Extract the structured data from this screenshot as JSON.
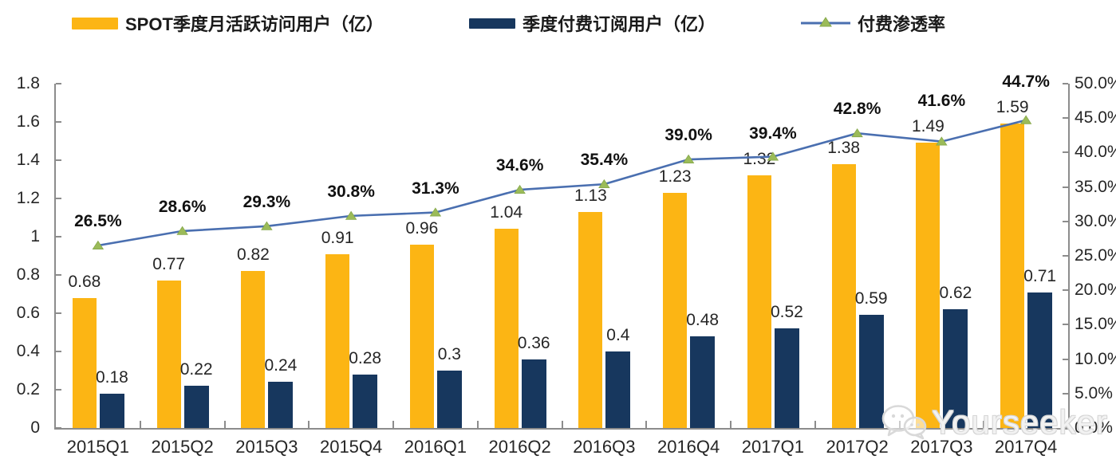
{
  "legend": [
    {
      "label": "SPOT季度月活跃访问用户（亿）",
      "type": "bar",
      "color": "#FCB514"
    },
    {
      "label": "季度付费订阅用户（亿）",
      "type": "bar",
      "color": "#17375E"
    },
    {
      "label": "付费渗透率",
      "type": "line",
      "color": "#4A6FB0",
      "marker_color": "#9BBB59"
    }
  ],
  "chart_data": {
    "type": "bar+line combo",
    "categories": [
      "2015Q1",
      "2015Q2",
      "2015Q3",
      "2015Q4",
      "2016Q1",
      "2016Q2",
      "2016Q3",
      "2016Q4",
      "2017Q1",
      "2017Q2",
      "2017Q3",
      "2017Q4"
    ],
    "series": [
      {
        "name": "SPOT季度月活跃访问用户（亿）",
        "type": "bar",
        "axis": "left",
        "color": "#FCB514",
        "values": [
          0.68,
          0.77,
          0.82,
          0.91,
          0.96,
          1.04,
          1.13,
          1.23,
          1.32,
          1.38,
          1.49,
          1.59
        ],
        "labels": [
          "0.68",
          "0.77",
          "0.82",
          "0.91",
          "0.96",
          "1.04",
          "1.13",
          "1.23",
          "1.32",
          "1.38",
          "1.49",
          "1.59"
        ]
      },
      {
        "name": "季度付费订阅用户（亿）",
        "type": "bar",
        "axis": "left",
        "color": "#17375E",
        "values": [
          0.18,
          0.22,
          0.24,
          0.28,
          0.3,
          0.36,
          0.4,
          0.48,
          0.52,
          0.59,
          0.62,
          0.71
        ],
        "labels": [
          "0.18",
          "0.22",
          "0.24",
          "0.28",
          "0.3",
          "0.36",
          "0.4",
          "0.48",
          "0.52",
          "0.59",
          "0.62",
          "0.71"
        ]
      },
      {
        "name": "付费渗透率",
        "type": "line",
        "axis": "right",
        "color": "#4A6FB0",
        "marker": "triangle",
        "marker_color": "#9BBB59",
        "values": [
          26.5,
          28.6,
          29.3,
          30.8,
          31.3,
          34.6,
          35.4,
          39.0,
          39.4,
          42.8,
          41.6,
          44.7
        ],
        "labels": [
          "26.5%",
          "28.6%",
          "29.3%",
          "30.8%",
          "31.3%",
          "34.6%",
          "35.4%",
          "39.0%",
          "39.4%",
          "42.8%",
          "41.6%",
          "44.7%"
        ]
      }
    ],
    "left_axis": {
      "min": 0,
      "max": 1.8,
      "ticks": [
        "1.8",
        "1.6",
        "1.4",
        "1.2",
        "1",
        "0.8",
        "0.6",
        "0.4",
        "0.2",
        "0"
      ]
    },
    "right_axis": {
      "min": 0,
      "max": 50,
      "ticks": [
        "50.0%",
        "45.0%",
        "40.0%",
        "35.0%",
        "30.0%",
        "25.0%",
        "20.0%",
        "15.0%",
        "10.0%",
        "5.0%",
        "0.0%"
      ]
    },
    "grid": false,
    "legend_position": "top",
    "title": ""
  },
  "watermark": {
    "icon": "wechat-icon",
    "text": "Yourseeker"
  },
  "colors": {
    "axis_line": "#8c8c8c",
    "label_text": "#262626",
    "pct_label_text": "#111111"
  }
}
